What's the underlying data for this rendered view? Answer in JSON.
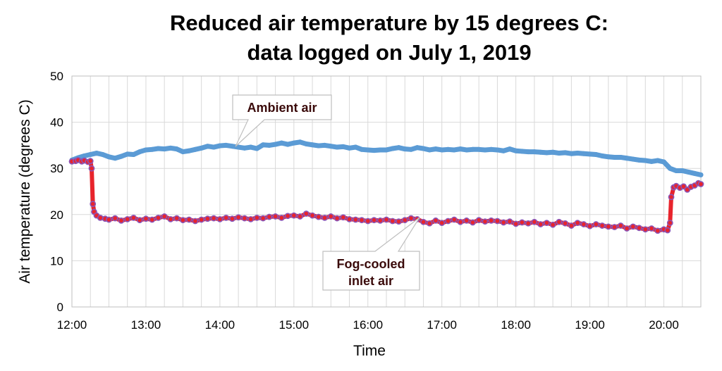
{
  "chart_data": {
    "type": "scatter",
    "title_lines": [
      "Reduced air temperature by 15 degrees C:",
      "data logged on July 1, 2019"
    ],
    "xlabel": "Time",
    "ylabel": "Air temperature (degrees C)",
    "x_ticks": [
      "12:00",
      "13:00",
      "14:00",
      "15:00",
      "16:00",
      "17:00",
      "18:00",
      "19:00",
      "20:00"
    ],
    "xlim": [
      "12:00",
      "20:30"
    ],
    "ylim": [
      0,
      50
    ],
    "y_ticks": [
      0,
      10,
      20,
      30,
      40,
      50
    ],
    "grid": true,
    "series": [
      {
        "name": "Ambient air",
        "color": "#5b9bd5",
        "points": [
          [
            "12:00",
            31.8
          ],
          [
            "12:05",
            32.3
          ],
          [
            "12:10",
            32.7
          ],
          [
            "12:15",
            33.0
          ],
          [
            "12:20",
            33.3
          ],
          [
            "12:25",
            33.0
          ],
          [
            "12:30",
            32.5
          ],
          [
            "12:35",
            32.2
          ],
          [
            "12:40",
            32.6
          ],
          [
            "12:45",
            33.1
          ],
          [
            "12:50",
            33.0
          ],
          [
            "12:55",
            33.6
          ],
          [
            "13:00",
            34.0
          ],
          [
            "13:05",
            34.1
          ],
          [
            "13:10",
            34.3
          ],
          [
            "13:15",
            34.2
          ],
          [
            "13:20",
            34.4
          ],
          [
            "13:25",
            34.2
          ],
          [
            "13:30",
            33.6
          ],
          [
            "13:35",
            33.8
          ],
          [
            "13:40",
            34.1
          ],
          [
            "13:45",
            34.4
          ],
          [
            "13:50",
            34.8
          ],
          [
            "13:55",
            34.6
          ],
          [
            "14:00",
            34.9
          ],
          [
            "14:05",
            35.0
          ],
          [
            "14:10",
            34.8
          ],
          [
            "14:15",
            34.6
          ],
          [
            "14:20",
            34.4
          ],
          [
            "14:25",
            34.6
          ],
          [
            "14:30",
            34.3
          ],
          [
            "14:35",
            35.1
          ],
          [
            "14:40",
            35.0
          ],
          [
            "14:45",
            35.2
          ],
          [
            "14:50",
            35.5
          ],
          [
            "14:55",
            35.2
          ],
          [
            "15:00",
            35.5
          ],
          [
            "15:05",
            35.7
          ],
          [
            "15:10",
            35.3
          ],
          [
            "15:15",
            35.1
          ],
          [
            "15:20",
            34.9
          ],
          [
            "15:25",
            35.0
          ],
          [
            "15:30",
            34.8
          ],
          [
            "15:35",
            34.6
          ],
          [
            "15:40",
            34.7
          ],
          [
            "15:45",
            34.4
          ],
          [
            "15:50",
            34.6
          ],
          [
            "15:55",
            34.1
          ],
          [
            "16:00",
            34.0
          ],
          [
            "16:05",
            33.9
          ],
          [
            "16:10",
            34.0
          ],
          [
            "16:15",
            34.0
          ],
          [
            "16:20",
            34.3
          ],
          [
            "16:25",
            34.5
          ],
          [
            "16:30",
            34.2
          ],
          [
            "16:35",
            34.1
          ],
          [
            "16:40",
            34.5
          ],
          [
            "16:45",
            34.3
          ],
          [
            "16:50",
            34.0
          ],
          [
            "16:55",
            34.2
          ],
          [
            "17:00",
            34.0
          ],
          [
            "17:05",
            34.1
          ],
          [
            "17:10",
            34.0
          ],
          [
            "17:15",
            34.2
          ],
          [
            "17:20",
            34.0
          ],
          [
            "17:25",
            34.1
          ],
          [
            "17:30",
            34.1
          ],
          [
            "17:35",
            34.0
          ],
          [
            "17:40",
            34.1
          ],
          [
            "17:45",
            34.0
          ],
          [
            "17:50",
            33.8
          ],
          [
            "17:55",
            34.2
          ],
          [
            "18:00",
            33.8
          ],
          [
            "18:05",
            33.7
          ],
          [
            "18:10",
            33.6
          ],
          [
            "18:15",
            33.6
          ],
          [
            "18:20",
            33.5
          ],
          [
            "18:25",
            33.4
          ],
          [
            "18:30",
            33.5
          ],
          [
            "18:35",
            33.3
          ],
          [
            "18:40",
            33.4
          ],
          [
            "18:45",
            33.2
          ],
          [
            "18:50",
            33.3
          ],
          [
            "18:55",
            33.2
          ],
          [
            "19:00",
            33.1
          ],
          [
            "19:05",
            33.0
          ],
          [
            "19:10",
            32.7
          ],
          [
            "19:15",
            32.5
          ],
          [
            "19:20",
            32.4
          ],
          [
            "19:25",
            32.4
          ],
          [
            "19:30",
            32.2
          ],
          [
            "19:35",
            32.0
          ],
          [
            "19:40",
            31.8
          ],
          [
            "19:45",
            31.7
          ],
          [
            "19:50",
            31.5
          ],
          [
            "19:55",
            31.7
          ],
          [
            "20:00",
            31.4
          ],
          [
            "20:05",
            30.0
          ],
          [
            "20:10",
            29.5
          ],
          [
            "20:15",
            29.5
          ],
          [
            "20:20",
            29.2
          ],
          [
            "20:25",
            28.9
          ],
          [
            "20:30",
            28.6
          ]
        ]
      },
      {
        "name": "Fog-cooled inlet air",
        "color": "#e8242c",
        "points": [
          [
            "12:00",
            31.5
          ],
          [
            "12:03",
            31.6
          ],
          [
            "12:05",
            31.8
          ],
          [
            "12:08",
            31.5
          ],
          [
            "12:10",
            31.7
          ],
          [
            "12:13",
            31.4
          ],
          [
            "12:15",
            31.6
          ],
          [
            "12:16",
            30.0
          ],
          [
            "12:17",
            22.3
          ],
          [
            "12:18",
            20.6
          ],
          [
            "12:20",
            19.8
          ],
          [
            "12:23",
            19.3
          ],
          [
            "12:27",
            19.1
          ],
          [
            "12:30",
            18.9
          ],
          [
            "12:35",
            19.2
          ],
          [
            "12:40",
            18.7
          ],
          [
            "12:45",
            19.0
          ],
          [
            "12:50",
            19.3
          ],
          [
            "12:55",
            18.8
          ],
          [
            "13:00",
            19.1
          ],
          [
            "13:05",
            18.9
          ],
          [
            "13:10",
            19.3
          ],
          [
            "13:15",
            19.6
          ],
          [
            "13:20",
            19.0
          ],
          [
            "13:25",
            19.2
          ],
          [
            "13:30",
            18.8
          ],
          [
            "13:35",
            18.9
          ],
          [
            "13:40",
            18.6
          ],
          [
            "13:45",
            18.9
          ],
          [
            "13:50",
            19.1
          ],
          [
            "13:55",
            19.2
          ],
          [
            "14:00",
            19.0
          ],
          [
            "14:05",
            19.3
          ],
          [
            "14:10",
            19.1
          ],
          [
            "14:15",
            19.4
          ],
          [
            "14:20",
            19.2
          ],
          [
            "14:25",
            19.0
          ],
          [
            "14:30",
            19.3
          ],
          [
            "14:35",
            19.2
          ],
          [
            "14:40",
            19.5
          ],
          [
            "14:45",
            19.6
          ],
          [
            "14:50",
            19.3
          ],
          [
            "14:55",
            19.7
          ],
          [
            "15:00",
            19.8
          ],
          [
            "15:05",
            19.6
          ],
          [
            "15:10",
            20.2
          ],
          [
            "15:15",
            19.8
          ],
          [
            "15:20",
            19.5
          ],
          [
            "15:25",
            19.3
          ],
          [
            "15:30",
            19.6
          ],
          [
            "15:35",
            19.2
          ],
          [
            "15:40",
            19.4
          ],
          [
            "15:45",
            19.0
          ],
          [
            "15:50",
            18.9
          ],
          [
            "15:55",
            18.8
          ],
          [
            "16:00",
            18.6
          ],
          [
            "16:05",
            18.8
          ],
          [
            "16:10",
            18.7
          ],
          [
            "16:15",
            18.9
          ],
          [
            "16:20",
            18.6
          ],
          [
            "16:25",
            18.5
          ],
          [
            "16:30",
            18.8
          ],
          [
            "16:35",
            19.2
          ],
          [
            "16:40",
            19.0
          ],
          [
            "16:45",
            18.4
          ],
          [
            "16:50",
            18.1
          ],
          [
            "16:55",
            18.7
          ],
          [
            "17:00",
            18.2
          ],
          [
            "17:05",
            18.6
          ],
          [
            "17:10",
            18.9
          ],
          [
            "17:15",
            18.4
          ],
          [
            "17:20",
            18.7
          ],
          [
            "17:25",
            18.3
          ],
          [
            "17:30",
            18.8
          ],
          [
            "17:35",
            18.5
          ],
          [
            "17:40",
            18.7
          ],
          [
            "17:45",
            18.6
          ],
          [
            "17:50",
            18.3
          ],
          [
            "17:55",
            18.5
          ],
          [
            "18:00",
            18.0
          ],
          [
            "18:05",
            18.3
          ],
          [
            "18:10",
            18.1
          ],
          [
            "18:15",
            18.4
          ],
          [
            "18:20",
            17.9
          ],
          [
            "18:25",
            18.2
          ],
          [
            "18:30",
            17.8
          ],
          [
            "18:35",
            18.4
          ],
          [
            "18:40",
            18.1
          ],
          [
            "18:45",
            17.6
          ],
          [
            "18:50",
            18.2
          ],
          [
            "18:55",
            17.9
          ],
          [
            "19:00",
            17.5
          ],
          [
            "19:05",
            17.9
          ],
          [
            "19:10",
            17.6
          ],
          [
            "19:15",
            17.4
          ],
          [
            "19:20",
            17.3
          ],
          [
            "19:25",
            17.6
          ],
          [
            "19:30",
            17.0
          ],
          [
            "19:35",
            17.4
          ],
          [
            "19:40",
            17.1
          ],
          [
            "19:45",
            16.8
          ],
          [
            "19:50",
            17.0
          ],
          [
            "19:55",
            16.5
          ],
          [
            "20:00",
            16.8
          ],
          [
            "20:03",
            16.6
          ],
          [
            "20:05",
            18.2
          ],
          [
            "20:06",
            23.8
          ],
          [
            "20:08",
            25.9
          ],
          [
            "20:10",
            26.2
          ],
          [
            "20:13",
            25.8
          ],
          [
            "20:16",
            26.1
          ],
          [
            "20:19",
            25.4
          ],
          [
            "20:22",
            26.0
          ],
          [
            "20:25",
            26.3
          ],
          [
            "20:28",
            26.8
          ],
          [
            "20:30",
            26.6
          ]
        ]
      }
    ],
    "annotations": [
      {
        "lines": [
          "Ambient air"
        ],
        "series": "Ambient air"
      },
      {
        "lines": [
          "Fog-cooled",
          "inlet air"
        ],
        "series": "Fog-cooled inlet air"
      }
    ]
  },
  "colors": {
    "ambient": "#5b9bd5",
    "inlet_fill": "#e8242c",
    "inlet_edge": "#8a56b8",
    "grid": "#d9d9d9",
    "axis": "#bfbfbf",
    "callout_text": "#3a0a0a"
  }
}
